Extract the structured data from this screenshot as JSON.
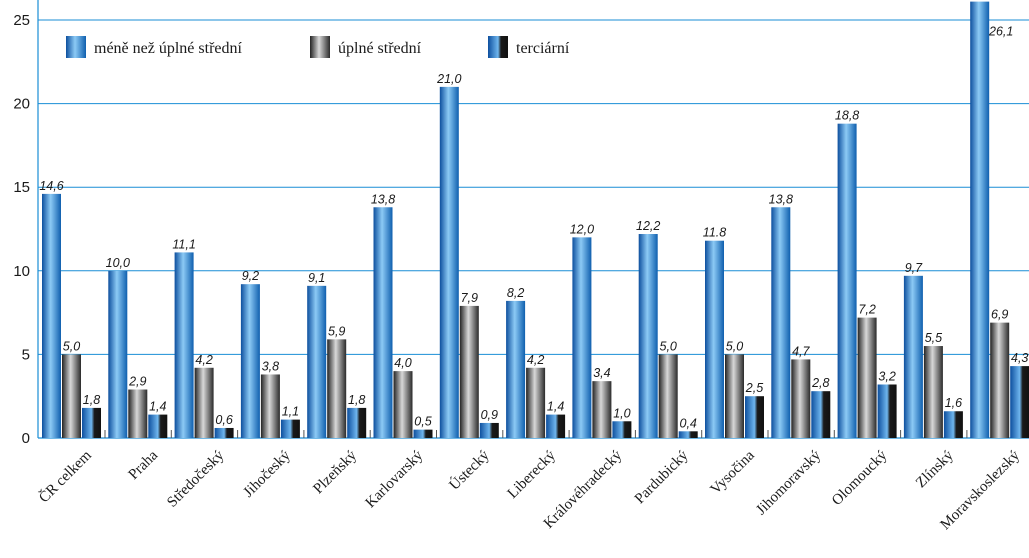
{
  "chart_data": {
    "type": "bar",
    "title": "",
    "xlabel": "",
    "ylabel": "",
    "ylim": [
      0,
      25
    ],
    "yticks": [
      0,
      5,
      10,
      15,
      20,
      25
    ],
    "grid": true,
    "legend_position": "top-left",
    "categories": [
      "ČR celkem",
      "Praha",
      "Středočeský",
      "Jihočeský",
      "Plzeňský",
      "Karlovarský",
      "Ústecký",
      "Liberecký",
      "Královéhradecký",
      "Pardubický",
      "Vysočina",
      "Jihomoravský",
      "Olomoucký",
      "Zlínský",
      "Moravskoslezský"
    ],
    "series": [
      {
        "name": "méně než úplné střední",
        "color": "#1877c8",
        "values": [
          14.6,
          10.0,
          11.1,
          9.2,
          9.1,
          13.8,
          21.0,
          8.2,
          12.0,
          12.2,
          11.8,
          13.8,
          18.8,
          9.7,
          26.1
        ],
        "labels": [
          "14,6",
          "10,0",
          "11,1",
          "9,2",
          "9,1",
          "13,8",
          "21,0",
          "8,2",
          "12,0",
          "12,2",
          "11.8",
          "13,8",
          "18,8",
          "9,7",
          "26,1"
        ]
      },
      {
        "name": "úplné střední",
        "color": "#555555",
        "values": [
          5.0,
          2.9,
          4.2,
          3.8,
          5.9,
          4.0,
          7.9,
          4.2,
          3.4,
          5.0,
          5.0,
          4.7,
          7.2,
          5.5,
          6.9
        ],
        "labels": [
          "5,0",
          "2,9",
          "4,2",
          "3,8",
          "5,9",
          "4,0",
          "7,9",
          "4,2",
          "3,4",
          "5,0",
          "5,0",
          "4,7",
          "7,2",
          "5,5",
          "6,9"
        ]
      },
      {
        "name": "terciární",
        "color": "#1877c8",
        "values": [
          1.8,
          1.4,
          0.6,
          1.1,
          1.8,
          0.5,
          0.9,
          1.4,
          1.0,
          0.4,
          2.5,
          2.8,
          3.2,
          1.6,
          4.3
        ],
        "labels": [
          "1,8",
          "1,4",
          "0,6",
          "1,1",
          "1,8",
          "0,5",
          "0,9",
          "1,4",
          "1,0",
          "0,4",
          "2,5",
          "2,8",
          "3,2",
          "1,6",
          "4,3"
        ]
      }
    ]
  }
}
